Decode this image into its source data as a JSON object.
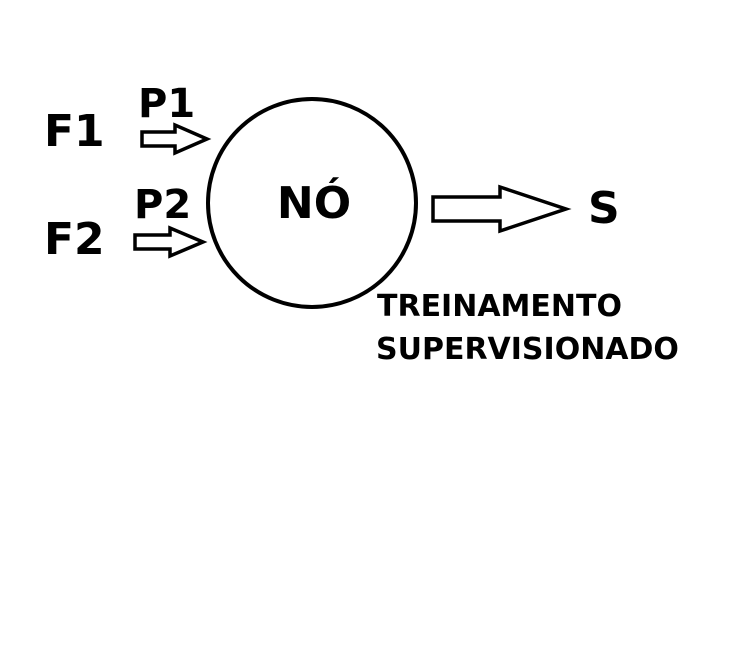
{
  "inputs": [
    {
      "feature": "F1",
      "weight": "P1"
    },
    {
      "feature": "F2",
      "weight": "P2"
    }
  ],
  "node": {
    "label": "NÓ"
  },
  "output": {
    "label": "S"
  },
  "caption": {
    "line1": "TREINAMENTO",
    "line2": "SUPERVISIONADO"
  }
}
